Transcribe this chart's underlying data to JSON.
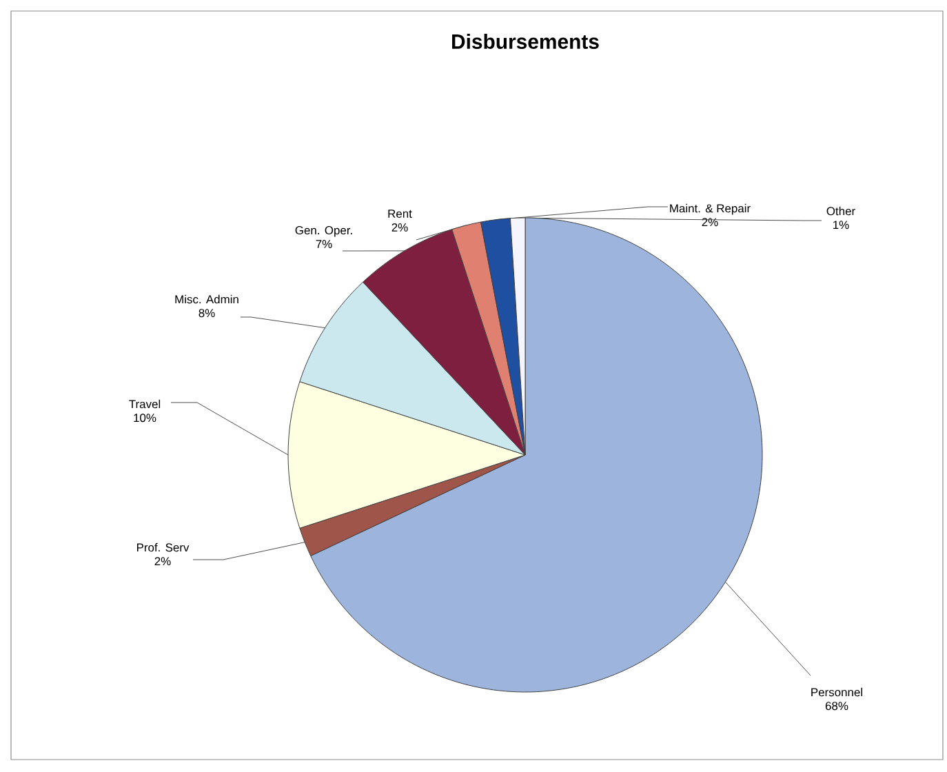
{
  "chart_data": {
    "type": "pie",
    "title": "Disbursements",
    "categories": [
      "Personnel",
      "Prof. Serv",
      "Travel",
      "Misc. Admin",
      "Gen. Oper.",
      "Rent",
      "Maint. & Repair",
      "Other"
    ],
    "values": [
      68,
      2,
      10,
      8,
      7,
      2,
      2,
      1
    ],
    "value_labels": [
      "68%",
      "2%",
      "10%",
      "8%",
      "7%",
      "2%",
      "2%",
      "1%"
    ],
    "colors": [
      "#9db5dc",
      "#a0554a",
      "#fefee0",
      "#cbe8ef",
      "#7e1f3f",
      "#e08070",
      "#1f4fa0",
      "#f5f5ff"
    ]
  }
}
